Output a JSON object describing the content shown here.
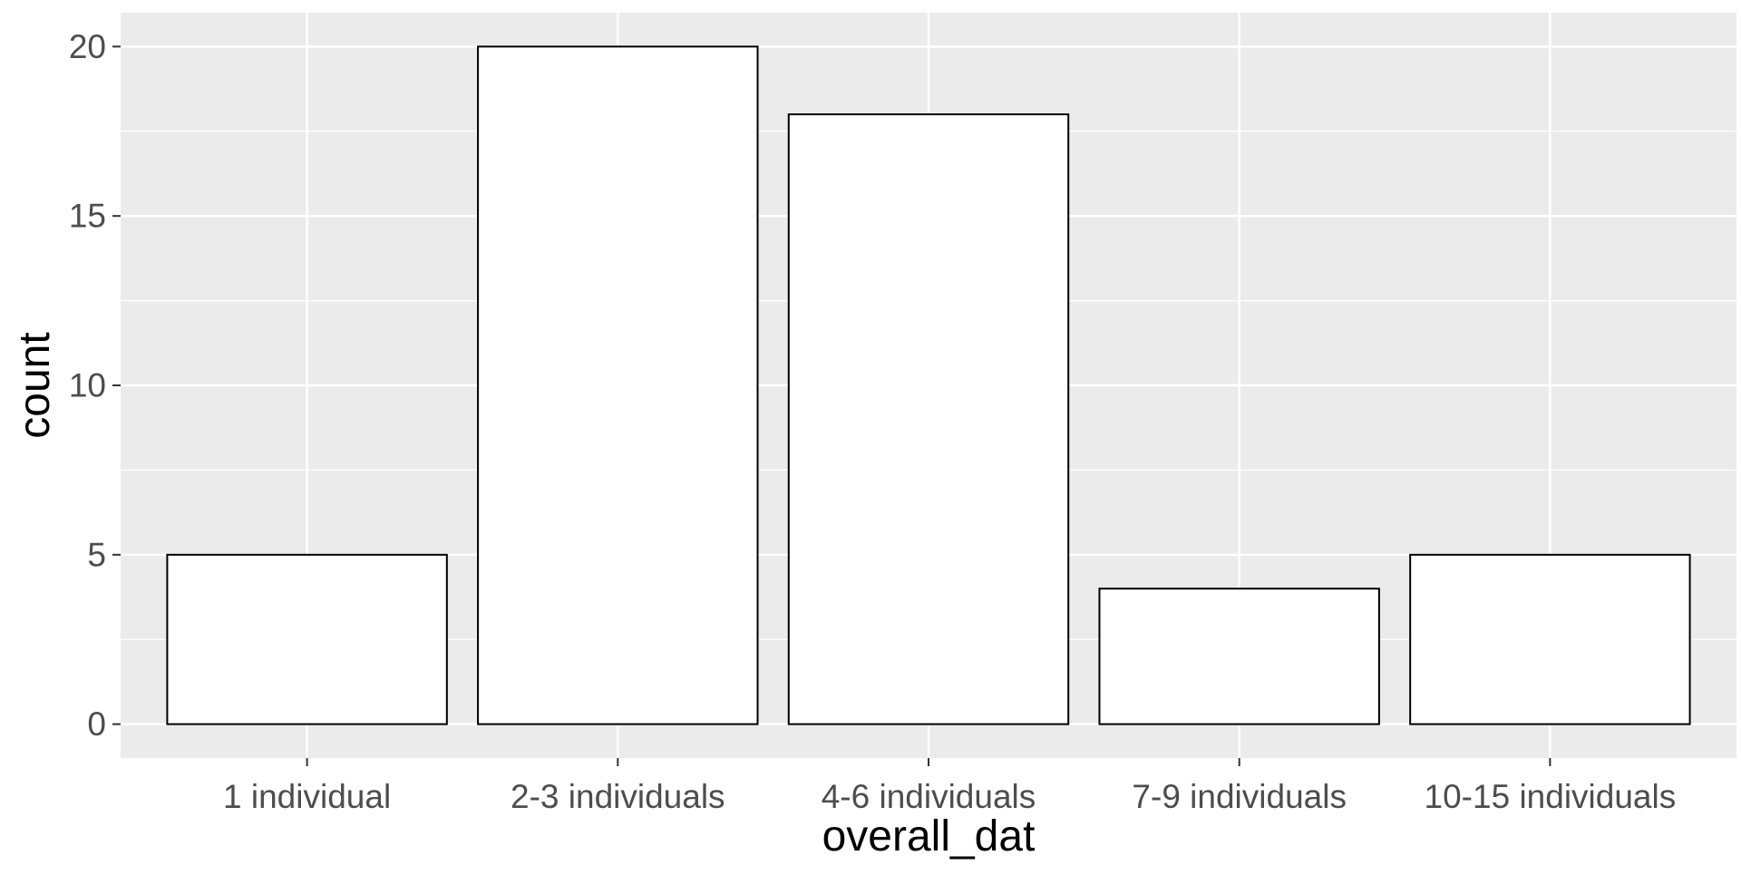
{
  "chart_data": {
    "type": "bar",
    "title": "",
    "xlabel": "overall_dat",
    "ylabel": "count",
    "categories": [
      "1 individual",
      "2-3 individuals",
      "4-6 individuals",
      "7-9 individuals",
      "10-15 individuals"
    ],
    "values": [
      5,
      20,
      18,
      4,
      5
    ],
    "ylim": [
      -1,
      21
    ],
    "yticks": [
      0,
      5,
      10,
      15,
      20
    ],
    "grid": true,
    "legend": "none",
    "colors": {
      "panel_background": "#ebebeb",
      "grid_major": "#ffffff",
      "bar_fill": "#ffffff",
      "bar_outline": "#000000",
      "tick_label": "#4d4d4d",
      "axis_title": "#000000"
    }
  }
}
